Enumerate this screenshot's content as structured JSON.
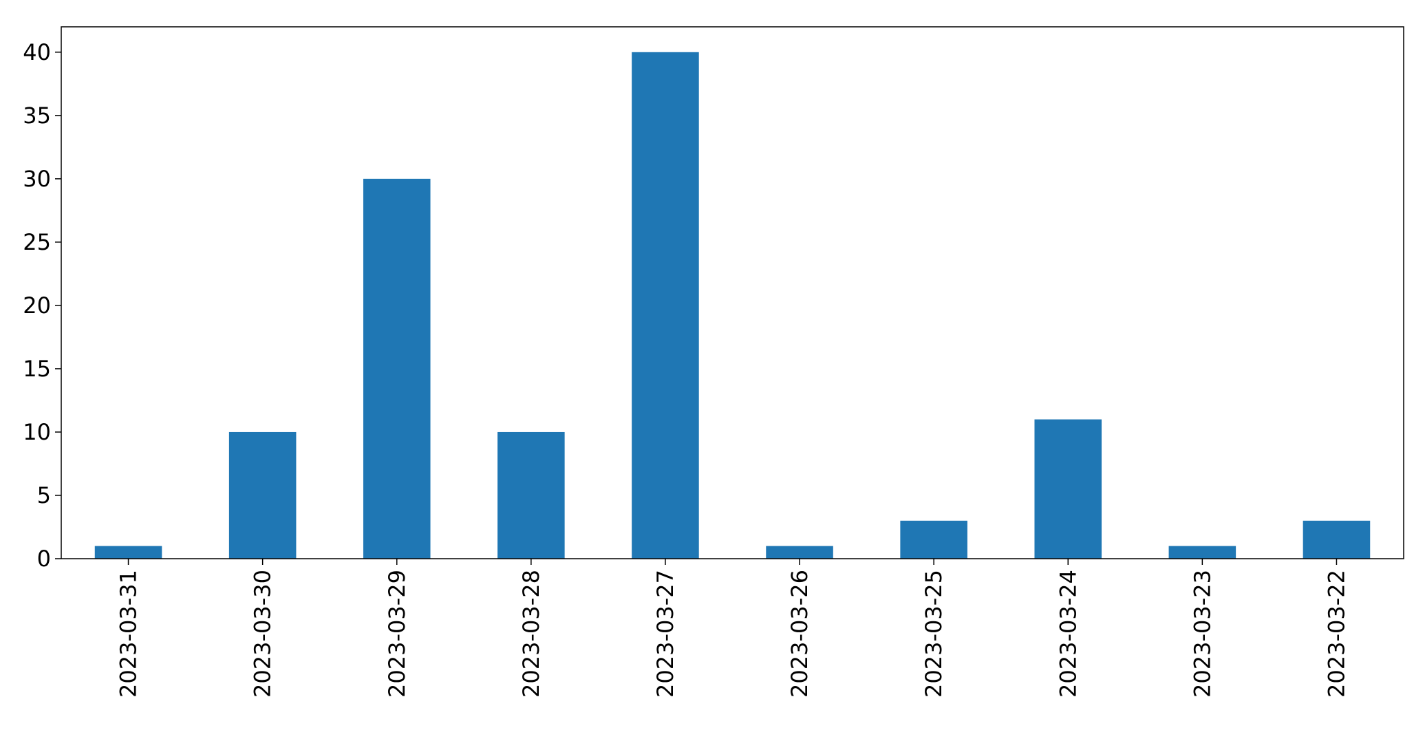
{
  "chart_data": {
    "type": "bar",
    "title": "",
    "xlabel": "",
    "ylabel": "",
    "categories": [
      "2023-03-31",
      "2023-03-30",
      "2023-03-29",
      "2023-03-28",
      "2023-03-27",
      "2023-03-26",
      "2023-03-25",
      "2023-03-24",
      "2023-03-23",
      "2023-03-22"
    ],
    "values": [
      1,
      10,
      30,
      10,
      40,
      1,
      3,
      11,
      1,
      3
    ],
    "ylim": [
      0,
      42
    ],
    "yticks": [
      0,
      5,
      10,
      15,
      20,
      25,
      30,
      35,
      40
    ],
    "grid": false,
    "legend": "none",
    "bar_color": "#1f77b4"
  }
}
